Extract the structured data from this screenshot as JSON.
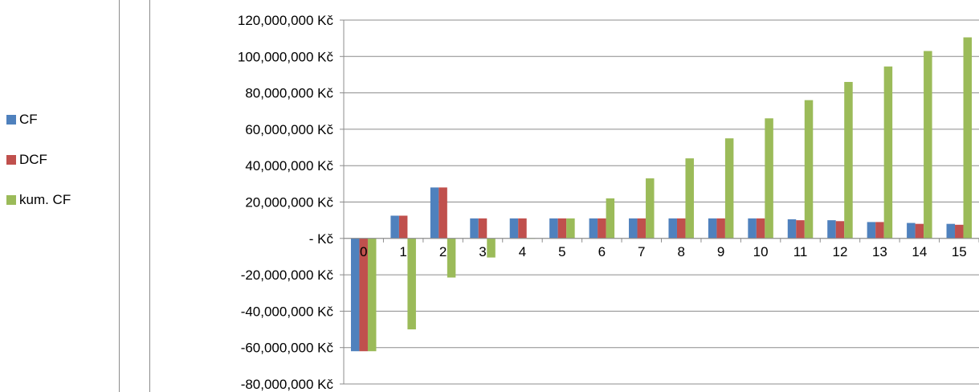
{
  "chart_data": {
    "type": "bar",
    "title": "",
    "xlabel": "",
    "ylabel": "",
    "categories": [
      "0",
      "1",
      "2",
      "3",
      "4",
      "5",
      "6",
      "7",
      "8",
      "9",
      "10",
      "11",
      "12",
      "13",
      "14",
      "15"
    ],
    "series": [
      {
        "name": "CF",
        "color": "#4F81BD",
        "values": [
          -62000000,
          12500000,
          28000000,
          11000000,
          11000000,
          11000000,
          11000000,
          11000000,
          11000000,
          11000000,
          11000000,
          10500000,
          10000000,
          9000000,
          8500000,
          8000000
        ]
      },
      {
        "name": "DCF",
        "color": "#C0504D",
        "values": [
          -62000000,
          12500000,
          28000000,
          11000000,
          11000000,
          11000000,
          11000000,
          11000000,
          11000000,
          11000000,
          11000000,
          10000000,
          9500000,
          9000000,
          8000000,
          7500000
        ]
      },
      {
        "name": "kum. CF",
        "color": "#9BBB59",
        "values": [
          -62000000,
          -50000000,
          -21500000,
          -10500000,
          0,
          11000000,
          22000000,
          33000000,
          44000000,
          55000000,
          66000000,
          76000000,
          86000000,
          94500000,
          103000000,
          110500000
        ]
      }
    ],
    "ylim": [
      -80000000,
      120000000
    ],
    "yticks": [
      -80000000,
      -60000000,
      -40000000,
      -20000000,
      0,
      20000000,
      40000000,
      60000000,
      80000000,
      100000000,
      120000000
    ],
    "ytick_labels": [
      "-80,000,000 Kč",
      "-60,000,000 Kč",
      "-40,000,000 Kč",
      "-20,000,000 Kč",
      "- Kč",
      "20,000,000 Kč",
      "40,000,000 Kč",
      "60,000,000 Kč",
      "80,000,000 Kč",
      "100,000,000 Kč",
      "120,000,000 Kč"
    ],
    "grid": true,
    "legend_position": "left"
  }
}
